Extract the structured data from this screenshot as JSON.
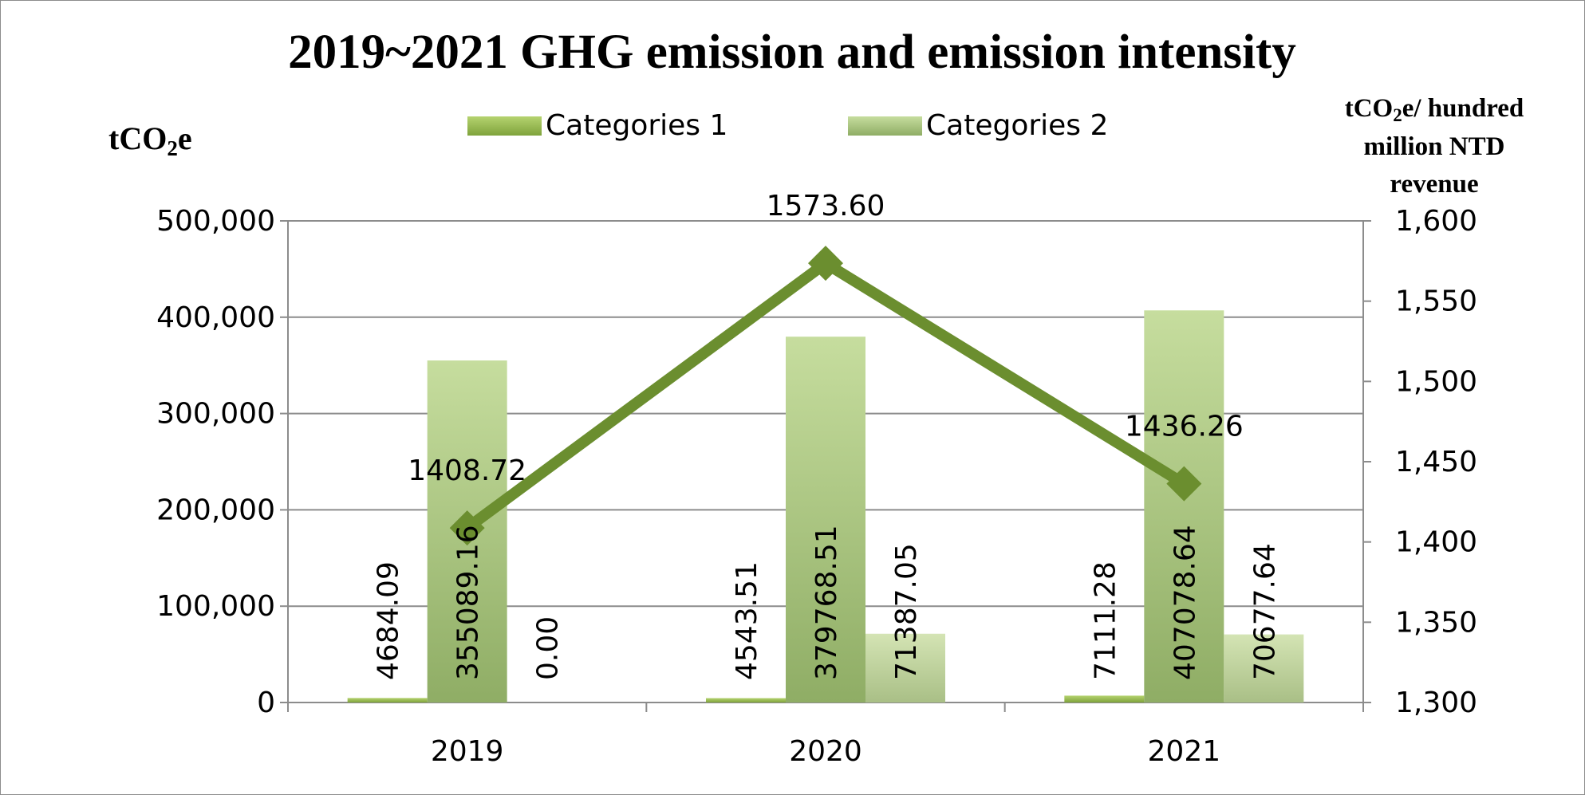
{
  "chart_data": {
    "type": "bar",
    "title": "2019~2021 GHG emission and emission intensity",
    "categories": [
      "2019",
      "2020",
      "2021"
    ],
    "y_left": {
      "label_main": "tCO",
      "label_sub": "2",
      "label_tail": "e",
      "range": [
        0,
        500000
      ],
      "ticks": [
        "0",
        "100,000",
        "200,000",
        "300,000",
        "400,000",
        "500,000"
      ]
    },
    "y_right": {
      "label_line1_main": "tCO",
      "label_line1_sub": "2",
      "label_line1_tail": "e/ hundred",
      "label_line2": "million NTD",
      "label_line3": "revenue",
      "range": [
        1300,
        1600
      ],
      "ticks": [
        "1,300",
        "1,350",
        "1,400",
        "1,450",
        "1,500",
        "1,550",
        "1,600"
      ]
    },
    "legend": {
      "placement": "top-center"
    },
    "series": [
      {
        "name": "Categories 1",
        "kind": "bar",
        "values": [
          4684.09,
          4543.51,
          7111.28
        ],
        "labels": [
          "4684.09",
          "4543.51",
          "7111.28"
        ],
        "color": "#8db54a"
      },
      {
        "name": "Categories 2",
        "kind": "bar",
        "values": [
          355089.16,
          379768.51,
          407078.64
        ],
        "labels": [
          "355089.16",
          "379768.51",
          "407078.64"
        ],
        "color": "#c2d69b"
      },
      {
        "name": "",
        "kind": "bar",
        "values": [
          0,
          71387.05,
          70677.64
        ],
        "labels": [
          "0.00",
          "71387.05",
          "70677.64"
        ],
        "color": "#d7e4bd"
      },
      {
        "name": "",
        "kind": "line",
        "axis": "right",
        "values": [
          1408.72,
          1573.6,
          1436.26
        ],
        "labels": [
          "1408.72",
          "1573.60",
          "1436.26"
        ],
        "color": "#6b8e2f"
      }
    ],
    "grid": true
  }
}
